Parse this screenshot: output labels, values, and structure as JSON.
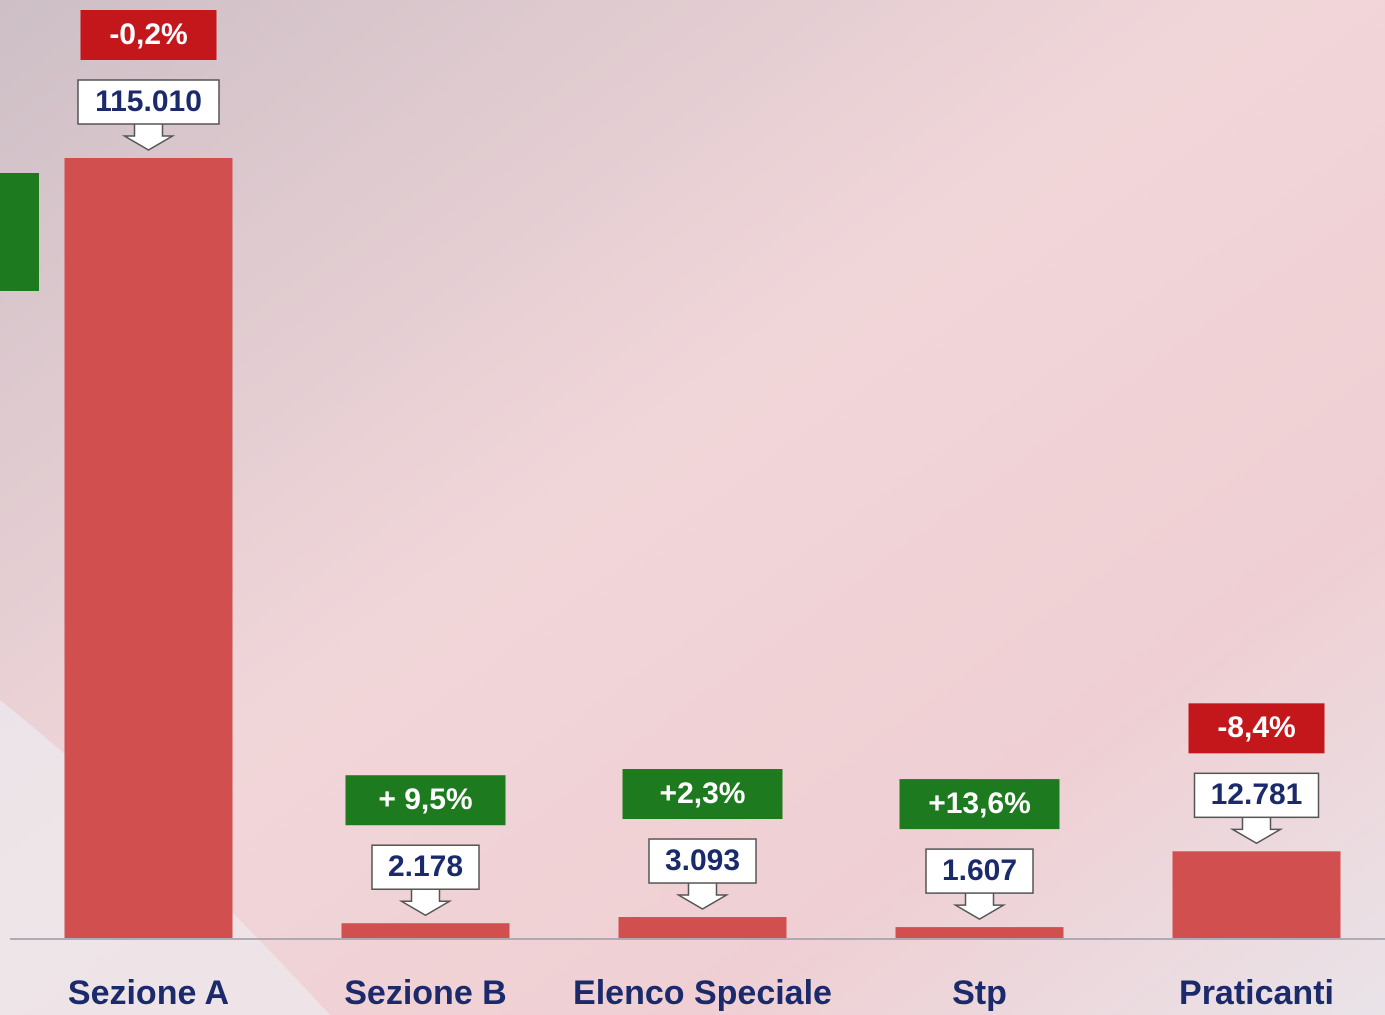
{
  "chart_data": {
    "type": "bar",
    "categories": [
      "Sezione A",
      "Sezione B",
      "Elenco Speciale",
      "Stp",
      "Praticanti"
    ],
    "values": [
      115010,
      2178,
      3093,
      1607,
      12781
    ],
    "value_labels": [
      "115.010",
      "2.178",
      "3.093",
      "1.607",
      "12.781"
    ],
    "annotations": [
      "-0,2%",
      "+ 9,5%",
      "+2,3%",
      "+13,6%",
      "-8,4%"
    ],
    "color": "#d24f50"
  }
}
